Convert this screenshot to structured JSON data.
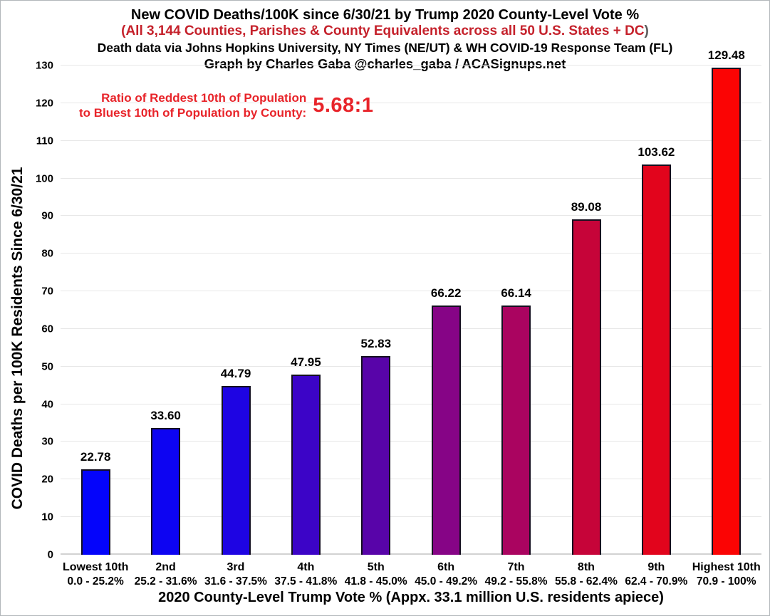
{
  "header": {
    "title": "New COVID Deaths/100K since 6/30/21 by Trump 2020 County-Level Vote %",
    "subtitle_main": "(All 3,144 Counties, Parishes & County Equivalents across all 50 U.S. States + DC",
    "subtitle_close": ")",
    "source_line": "Death data via Johns Hopkins University, NY Times (NE/UT) & WH COVID-19 Response Team (FL)",
    "credit_line": "Graph by Charles Gaba @charles_gaba / ACASignups.net"
  },
  "annotation": {
    "line1": "Ratio of Reddest 10th of Population",
    "line2": "to Bluest 10th of Population by County:",
    "ratio": "5.68:1"
  },
  "chart_data": {
    "type": "bar",
    "title": "New COVID Deaths/100K since 6/30/21 by Trump 2020 County-Level Vote %",
    "subtitle": "(All 3,144 Counties, Parishes & County Equivalents across all 50 U.S. States + DC)",
    "source": "Death data via Johns Hopkins University, NY Times (NE/UT) & WH COVID-19 Response Team (FL)",
    "credit": "Graph by Charles Gaba @charles_gaba / ACASignups.net",
    "xlabel": "2020 County-Level Trump Vote % (Appx. 33.1 million U.S. residents apiece)",
    "ylabel": "COVID Deaths per 100K Residents Since 6/30/21",
    "ylim": [
      0,
      130
    ],
    "ytick_step": 10,
    "grid": true,
    "legend": false,
    "categories": [
      "Lowest 10th",
      "2nd",
      "3rd",
      "4th",
      "5th",
      "6th",
      "7th",
      "8th",
      "9th",
      "Highest 10th"
    ],
    "ranges": [
      "0.0 - 25.2%",
      "25.2 - 31.6%",
      "31.6 - 37.5%",
      "37.5 - 41.8%",
      "41.8 - 45.0%",
      "45.0 - 49.2%",
      "49.2 - 55.8%",
      "55.8 - 62.4%",
      "62.4 - 70.9%",
      "70.9 - 100%"
    ],
    "values": [
      22.78,
      33.6,
      44.79,
      47.95,
      52.83,
      66.22,
      66.14,
      89.08,
      103.62,
      129.48
    ],
    "value_labels": [
      "22.78",
      "33.60",
      "44.79",
      "47.95",
      "52.83",
      "66.22",
      "66.14",
      "89.08",
      "103.62",
      "129.48"
    ],
    "bar_colors": [
      "#0404fb",
      "#0d04f2",
      "#1e04e3",
      "#3c04c7",
      "#5804a9",
      "#860486",
      "#aa0460",
      "#c60439",
      "#e2041c",
      "#fb0404"
    ]
  },
  "colors": {
    "subtitle_red": "#c5212b",
    "annotation_red": "#e8242a",
    "gridline": "#e7e7e7",
    "baseline": "#d2d2d2",
    "bar_border": "#14101f",
    "text": "#000000",
    "frame_border": "#b2b6ba"
  }
}
